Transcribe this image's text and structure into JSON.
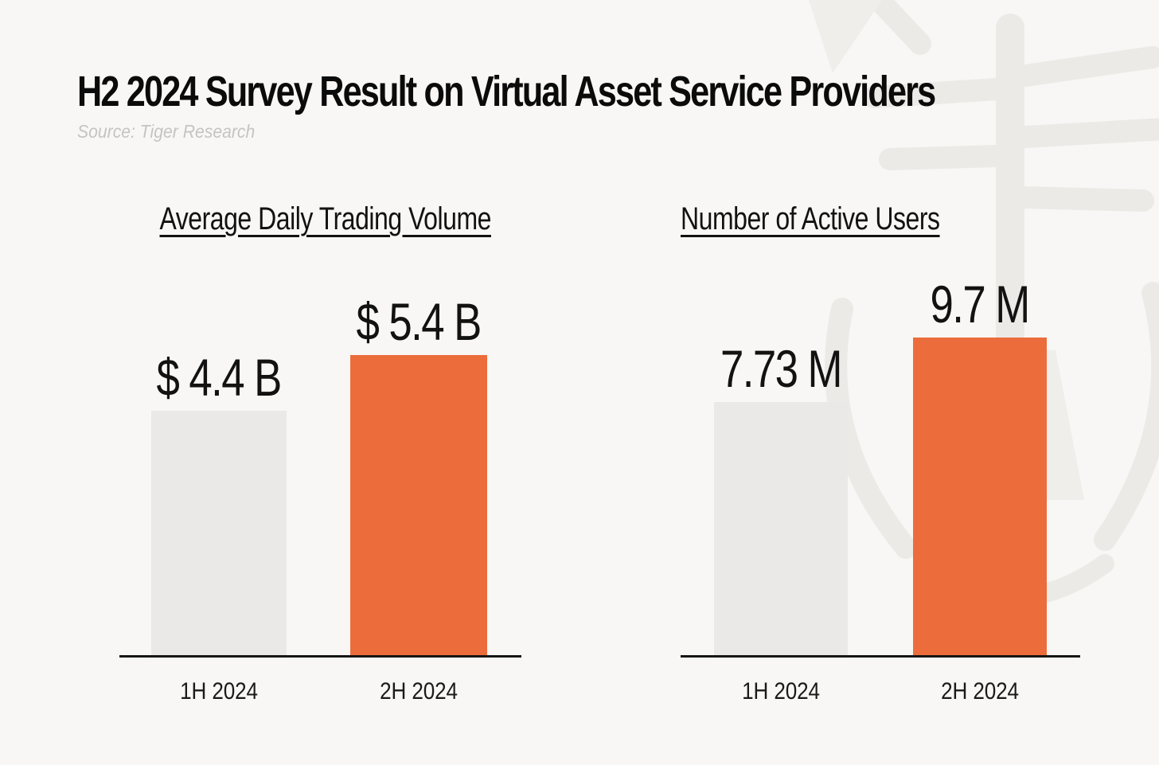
{
  "header": {
    "title": "H2 2024 Survey Result on Virtual Asset Service Providers",
    "source": "Source: Tiger Research"
  },
  "colors": {
    "background": "#F8F7F5",
    "bar_gray": "#EAE9E8",
    "bar_orange": "#EC6D3B",
    "axis": "#161616",
    "source_text": "#C6C4C2",
    "watermark": "#ECEAE7"
  },
  "watermark": {
    "icon": "tiger-logo"
  },
  "chart_data": [
    {
      "type": "bar",
      "title": "Average Daily Trading Volume",
      "categories": [
        "1H 2024",
        "2H 2024"
      ],
      "values": [
        4.4,
        5.4
      ],
      "value_unit": "USD billion",
      "data_labels": [
        "$ 4.4 B",
        "$ 5.4 B"
      ],
      "series_colors": [
        "#EAE9E8",
        "#EC6D3B"
      ],
      "ylim": [
        0,
        5.4
      ],
      "grid": false,
      "legend": false
    },
    {
      "type": "bar",
      "title": "Number of Active Users",
      "categories": [
        "1H 2024",
        "2H 2024"
      ],
      "values": [
        7.73,
        9.7
      ],
      "value_unit": "million users",
      "data_labels": [
        "7.73 M",
        "9.7 M"
      ],
      "series_colors": [
        "#EAE9E8",
        "#EC6D3B"
      ],
      "ylim": [
        0,
        9.7
      ],
      "grid": false,
      "legend": false
    }
  ]
}
